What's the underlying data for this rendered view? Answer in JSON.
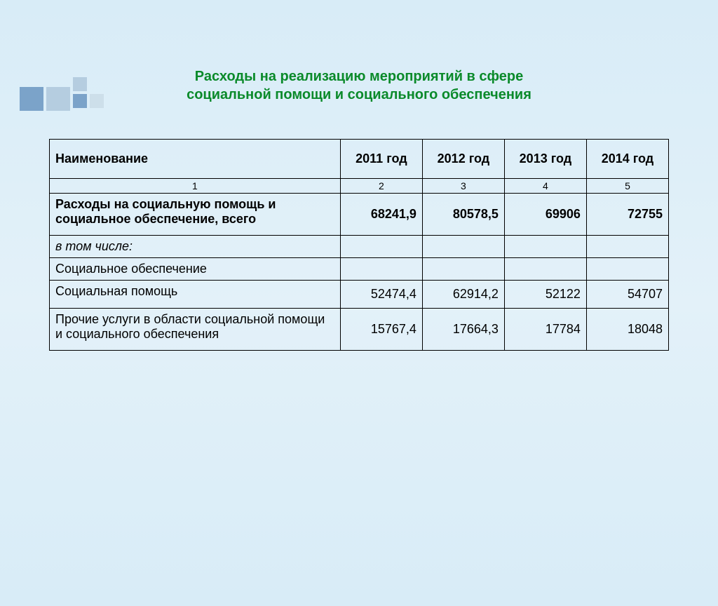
{
  "title_line1": "Расходы на реализацию мероприятий в сфере",
  "title_line2": "социальной помощи и социального обеспечения",
  "table": {
    "headers": {
      "name": "Наименование",
      "y2011": "2011 год",
      "y2012": "2012 год",
      "y2013": "2013 год",
      "y2014": "2014 год"
    },
    "colnums": {
      "c1": "1",
      "c2": "2",
      "c3": "3",
      "c4": "4",
      "c5": "5"
    },
    "rows": {
      "total": {
        "label": "Расходы на социальную помощь и социальное обеспечение, всего",
        "v2011": "68241,9",
        "v2012": "80578,5",
        "v2013": "69906",
        "v2014": "72755"
      },
      "including": {
        "label": "в том числе:"
      },
      "security": {
        "label": "Социальное обеспечение",
        "v2011": "",
        "v2012": "",
        "v2013": "",
        "v2014": ""
      },
      "help": {
        "label": "Социальная помощь",
        "v2011": "52474,4",
        "v2012": "62914,2",
        "v2013": "52122",
        "v2014": "54707"
      },
      "other": {
        "label": "Прочие услуги в области социальной помощи и социального обеспечения",
        "v2011": "15767,4",
        "v2012": "17664,3",
        "v2013": "17784",
        "v2014": "18048"
      }
    }
  },
  "styling": {
    "title_color": "#0a8a2a",
    "title_fontsize": 20,
    "cell_fontsize": 18,
    "numrow_fontsize": 14,
    "border_color": "#000000",
    "background_gradient": [
      "#d8ecf7",
      "#e3f1f9",
      "#d8ecf7"
    ],
    "deco_colors": {
      "dark": "#7ba3c9",
      "mid": "#b5cde0",
      "light": "#cddfea"
    },
    "col_widths": {
      "name": 390,
      "year": 110
    }
  }
}
